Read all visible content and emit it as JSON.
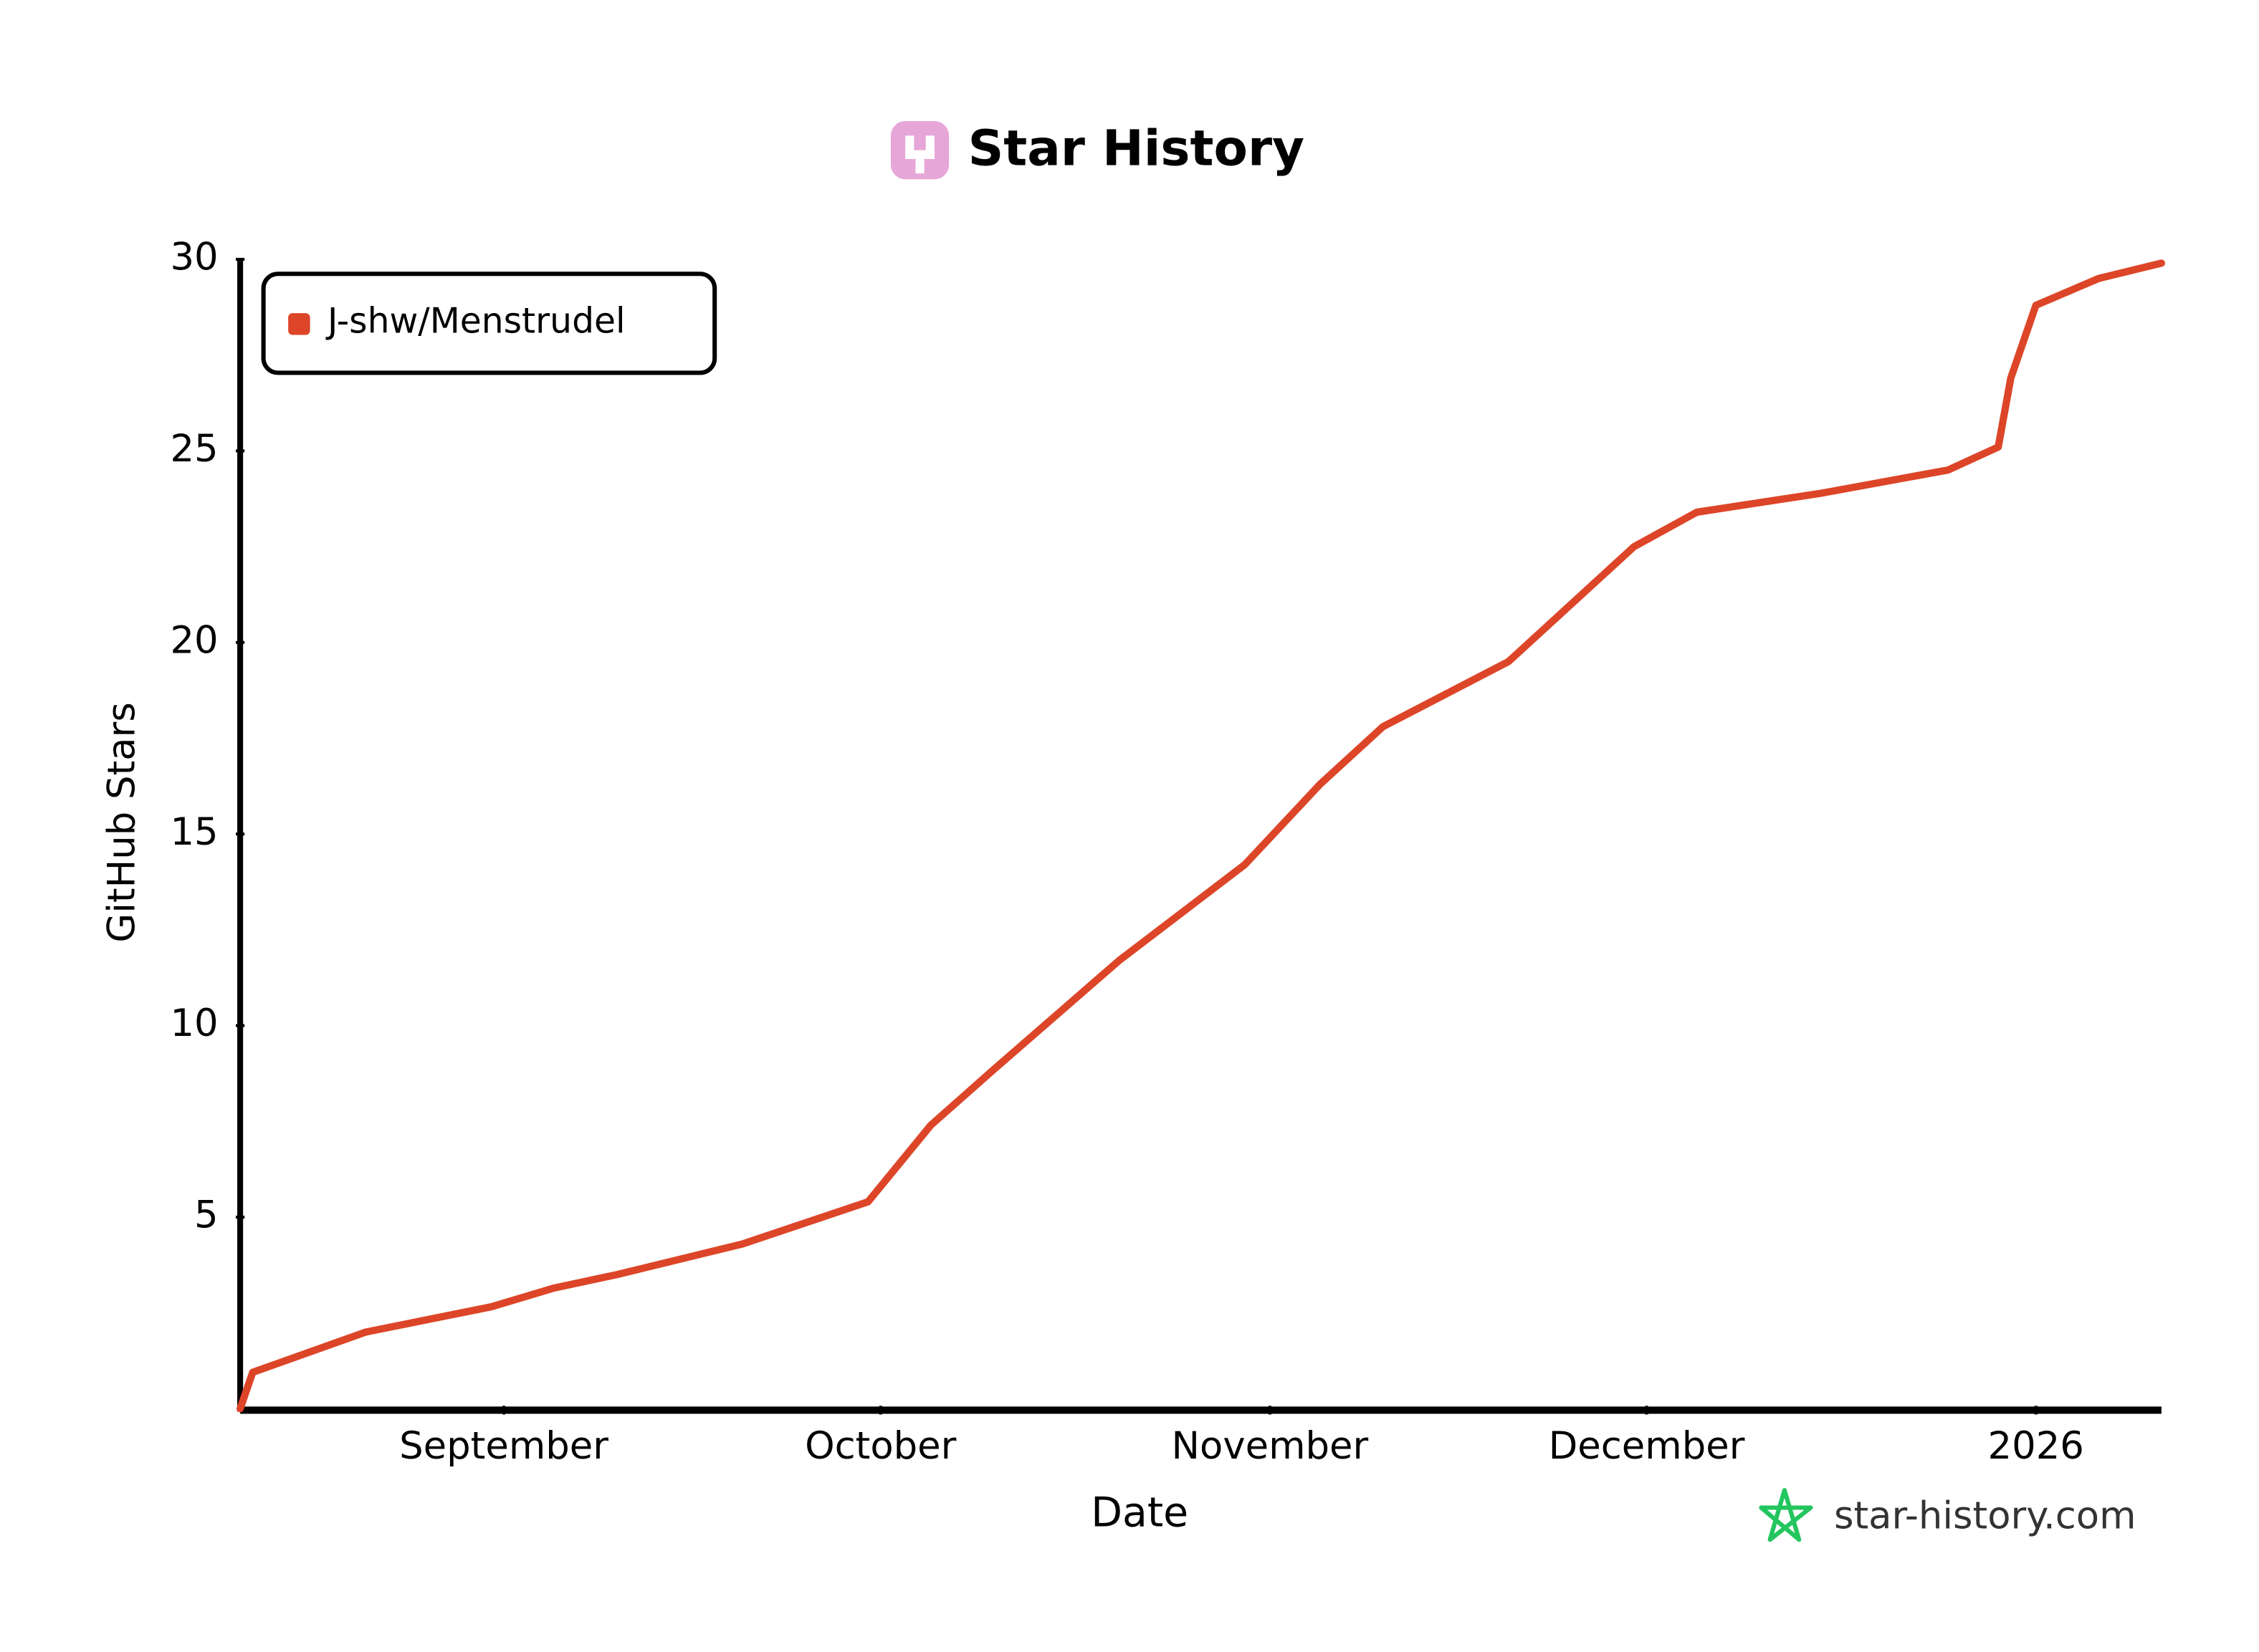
{
  "chart_data": {
    "type": "line",
    "title": "Star History",
    "xlabel": "Date",
    "ylabel": "GitHub Stars",
    "watermark": "star-history.com",
    "x": [
      "2025-08-11",
      "2025-08-12",
      "2025-08-21",
      "2025-08-31",
      "2025-09-05",
      "2025-09-10",
      "2025-09-20",
      "2025-09-30",
      "2025-10-05",
      "2025-10-10",
      "2025-10-20",
      "2025-10-30",
      "2025-11-05",
      "2025-11-10",
      "2025-11-20",
      "2025-11-30",
      "2025-12-05",
      "2025-12-15",
      "2025-12-25",
      "2025-12-29",
      "2025-12-30",
      "2026-01-01",
      "2026-01-06",
      "2026-01-11"
    ],
    "series": [
      {
        "name": "J-shw/Menstrudel",
        "color": "#dd4528",
        "values": [
          0,
          0.95,
          2.0,
          2.66,
          3.15,
          3.5,
          4.3,
          5.4,
          7.4,
          8.85,
          11.7,
          14.2,
          16.3,
          17.8,
          19.5,
          22.5,
          23.4,
          23.9,
          24.5,
          25.1,
          26.9,
          28.8,
          29.5,
          29.9
        ]
      }
    ],
    "xlim": [
      "2025-08-11",
      "2026-01-11"
    ],
    "xticks": [
      {
        "value": "2025-09-01",
        "label": "September"
      },
      {
        "value": "2025-10-01",
        "label": "October"
      },
      {
        "value": "2025-11-01",
        "label": "November"
      },
      {
        "value": "2025-12-01",
        "label": "December"
      },
      {
        "value": "2026-01-01",
        "label": "2026"
      }
    ],
    "ylim": [
      0,
      30
    ],
    "yticks": [
      5,
      10,
      15,
      20,
      25,
      30
    ],
    "grid": false,
    "legend": "upper-left"
  }
}
